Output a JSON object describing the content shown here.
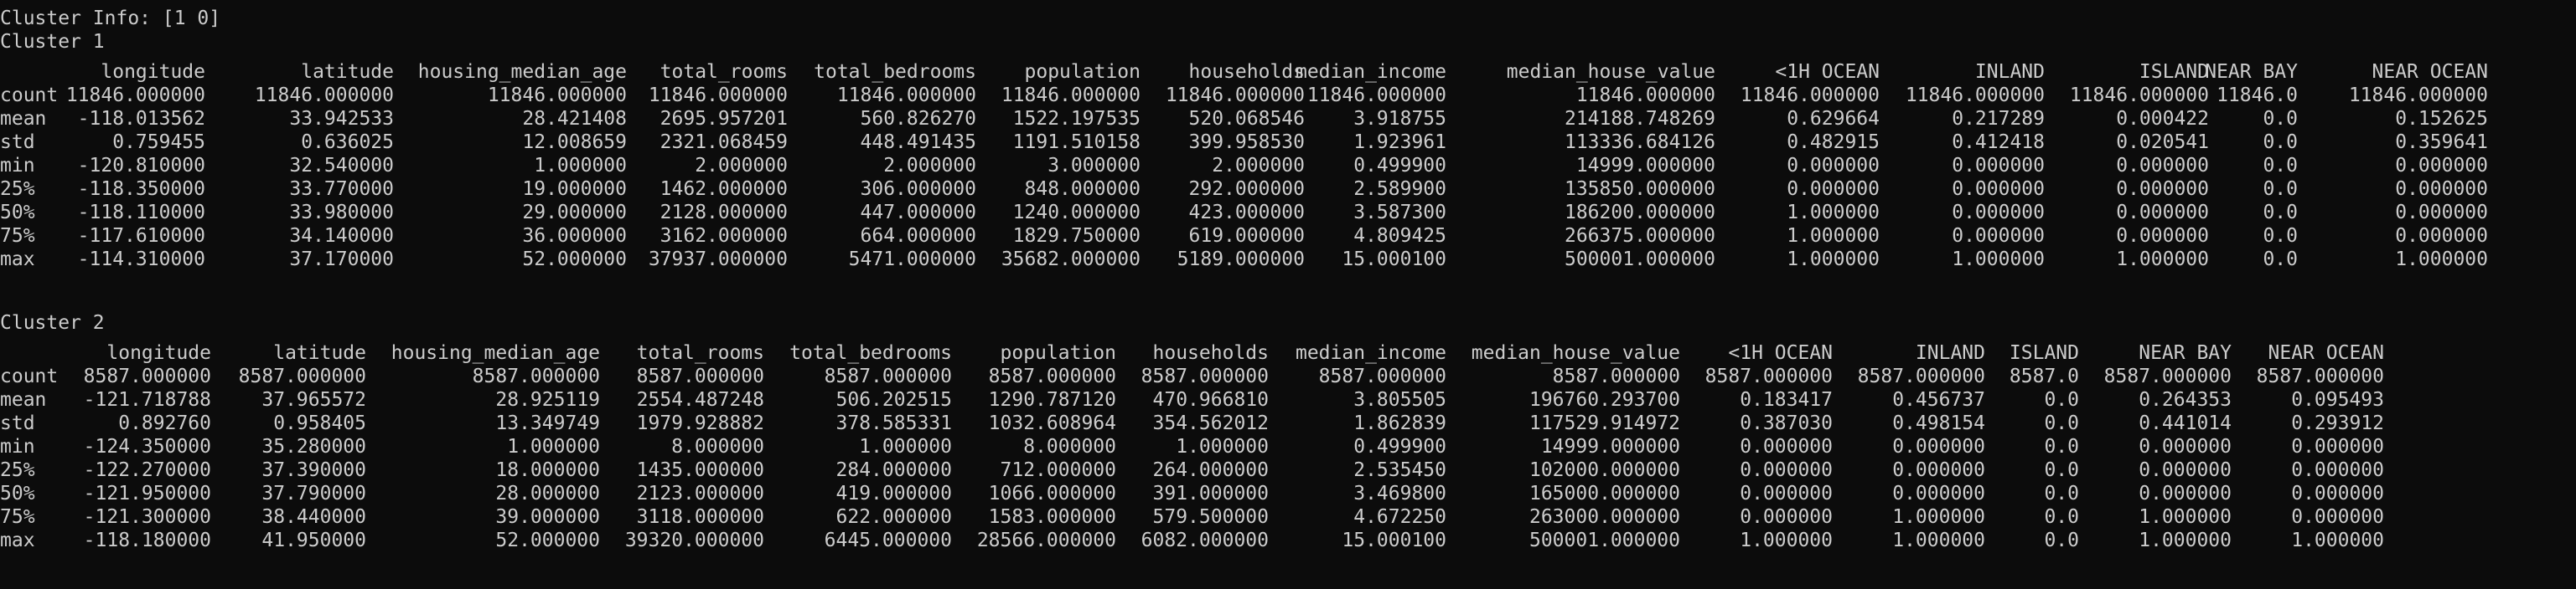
{
  "output": {
    "info_line": "Cluster Info: [1 0]",
    "clusters": [
      {
        "title": "Cluster 1",
        "columns": [
          "longitude",
          "latitude",
          "housing_median_age",
          "total_rooms",
          "total_bedrooms",
          "population",
          "households",
          "median_income",
          "median_house_value",
          "<1H OCEAN",
          "INLAND",
          "ISLAND",
          "NEAR BAY",
          "NEAR OCEAN"
        ],
        "rows": [
          {
            "label": "count",
            "values": [
              "11846.000000",
              "11846.000000",
              "11846.000000",
              "11846.000000",
              "11846.000000",
              "11846.000000",
              "11846.000000",
              "11846.000000",
              "11846.000000",
              "11846.000000",
              "11846.000000",
              "11846.000000",
              "11846.0",
              "11846.000000"
            ]
          },
          {
            "label": "mean",
            "values": [
              "-118.013562",
              "33.942533",
              "28.421408",
              "2695.957201",
              "560.826270",
              "1522.197535",
              "520.068546",
              "3.918755",
              "214188.748269",
              "0.629664",
              "0.217289",
              "0.000422",
              "0.0",
              "0.152625"
            ]
          },
          {
            "label": "std",
            "values": [
              "0.759455",
              "0.636025",
              "12.008659",
              "2321.068459",
              "448.491435",
              "1191.510158",
              "399.958530",
              "1.923961",
              "113336.684126",
              "0.482915",
              "0.412418",
              "0.020541",
              "0.0",
              "0.359641"
            ]
          },
          {
            "label": "min",
            "values": [
              "-120.810000",
              "32.540000",
              "1.000000",
              "2.000000",
              "2.000000",
              "3.000000",
              "2.000000",
              "0.499900",
              "14999.000000",
              "0.000000",
              "0.000000",
              "0.000000",
              "0.0",
              "0.000000"
            ]
          },
          {
            "label": "25%",
            "values": [
              "-118.350000",
              "33.770000",
              "19.000000",
              "1462.000000",
              "306.000000",
              "848.000000",
              "292.000000",
              "2.589900",
              "135850.000000",
              "0.000000",
              "0.000000",
              "0.000000",
              "0.0",
              "0.000000"
            ]
          },
          {
            "label": "50%",
            "values": [
              "-118.110000",
              "33.980000",
              "29.000000",
              "2128.000000",
              "447.000000",
              "1240.000000",
              "423.000000",
              "3.587300",
              "186200.000000",
              "1.000000",
              "0.000000",
              "0.000000",
              "0.0",
              "0.000000"
            ]
          },
          {
            "label": "75%",
            "values": [
              "-117.610000",
              "34.140000",
              "36.000000",
              "3162.000000",
              "664.000000",
              "1829.750000",
              "619.000000",
              "4.809425",
              "266375.000000",
              "1.000000",
              "0.000000",
              "0.000000",
              "0.0",
              "0.000000"
            ]
          },
          {
            "label": "max",
            "values": [
              "-114.310000",
              "37.170000",
              "52.000000",
              "37937.000000",
              "5471.000000",
              "35682.000000",
              "5189.000000",
              "15.000100",
              "500001.000000",
              "1.000000",
              "1.000000",
              "1.000000",
              "0.0",
              "1.000000"
            ]
          }
        ]
      },
      {
        "title": "Cluster 2",
        "columns": [
          "longitude",
          "latitude",
          "housing_median_age",
          "total_rooms",
          "total_bedrooms",
          "population",
          "households",
          "median_income",
          "median_house_value",
          "<1H OCEAN",
          "INLAND",
          "ISLAND",
          "NEAR BAY",
          "NEAR OCEAN"
        ],
        "rows": [
          {
            "label": "count",
            "values": [
              "8587.000000",
              "8587.000000",
              "8587.000000",
              "8587.000000",
              "8587.000000",
              "8587.000000",
              "8587.000000",
              "8587.000000",
              "8587.000000",
              "8587.000000",
              "8587.000000",
              "8587.0",
              "8587.000000",
              "8587.000000"
            ]
          },
          {
            "label": "mean",
            "values": [
              "-121.718788",
              "37.965572",
              "28.925119",
              "2554.487248",
              "506.202515",
              "1290.787120",
              "470.966810",
              "3.805505",
              "196760.293700",
              "0.183417",
              "0.456737",
              "0.0",
              "0.264353",
              "0.095493"
            ]
          },
          {
            "label": "std",
            "values": [
              "0.892760",
              "0.958405",
              "13.349749",
              "1979.928882",
              "378.585331",
              "1032.608964",
              "354.562012",
              "1.862839",
              "117529.914972",
              "0.387030",
              "0.498154",
              "0.0",
              "0.441014",
              "0.293912"
            ]
          },
          {
            "label": "min",
            "values": [
              "-124.350000",
              "35.280000",
              "1.000000",
              "8.000000",
              "1.000000",
              "8.000000",
              "1.000000",
              "0.499900",
              "14999.000000",
              "0.000000",
              "0.000000",
              "0.0",
              "0.000000",
              "0.000000"
            ]
          },
          {
            "label": "25%",
            "values": [
              "-122.270000",
              "37.390000",
              "18.000000",
              "1435.000000",
              "284.000000",
              "712.000000",
              "264.000000",
              "2.535450",
              "102000.000000",
              "0.000000",
              "0.000000",
              "0.0",
              "0.000000",
              "0.000000"
            ]
          },
          {
            "label": "50%",
            "values": [
              "-121.950000",
              "37.790000",
              "28.000000",
              "2123.000000",
              "419.000000",
              "1066.000000",
              "391.000000",
              "3.469800",
              "165000.000000",
              "0.000000",
              "0.000000",
              "0.0",
              "0.000000",
              "0.000000"
            ]
          },
          {
            "label": "75%",
            "values": [
              "-121.300000",
              "38.440000",
              "39.000000",
              "3118.000000",
              "622.000000",
              "1583.000000",
              "579.500000",
              "4.672250",
              "263000.000000",
              "0.000000",
              "1.000000",
              "0.0",
              "1.000000",
              "0.000000"
            ]
          },
          {
            "label": "max",
            "values": [
              "-118.180000",
              "41.950000",
              "52.000000",
              "39320.000000",
              "6445.000000",
              "28566.000000",
              "6082.000000",
              "15.000100",
              "500001.000000",
              "1.000000",
              "1.000000",
              "0.0",
              "1.000000",
              "1.000000"
            ]
          }
        ]
      }
    ]
  }
}
